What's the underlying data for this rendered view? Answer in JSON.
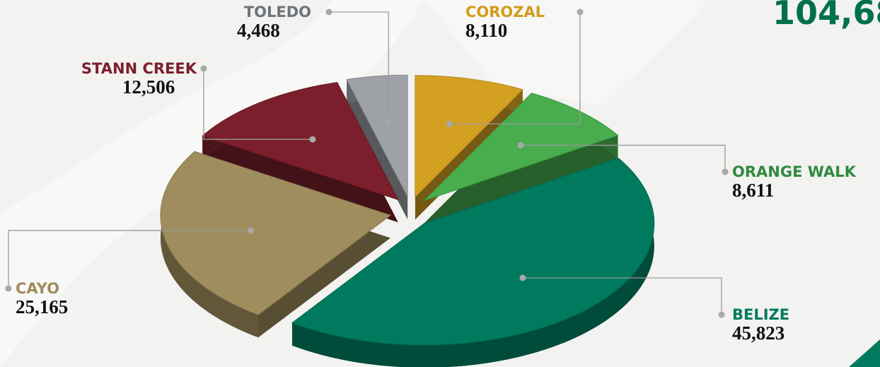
{
  "chart_data": {
    "type": "pie",
    "title": "104,68",
    "categories": [
      "COROZAL",
      "ORANGE WALK",
      "BELIZE",
      "CAYO",
      "STANN CREEK",
      "TOLEDO"
    ],
    "values": [
      8110,
      8611,
      45823,
      25165,
      12506,
      4468
    ],
    "value_labels": [
      "8,110",
      "8,611",
      "45,823",
      "25,165",
      "12,506",
      "4,468"
    ],
    "colors": [
      "#d4a021",
      "#47ad4d",
      "#007a5f",
      "#a08d5d",
      "#7a1f2b",
      "#9ea1a6"
    ],
    "label_colors": [
      "#d19b1a",
      "#2e8b3e",
      "#007a5f",
      "#a08d5d",
      "#7a1f2b",
      "#6f737a"
    ]
  }
}
